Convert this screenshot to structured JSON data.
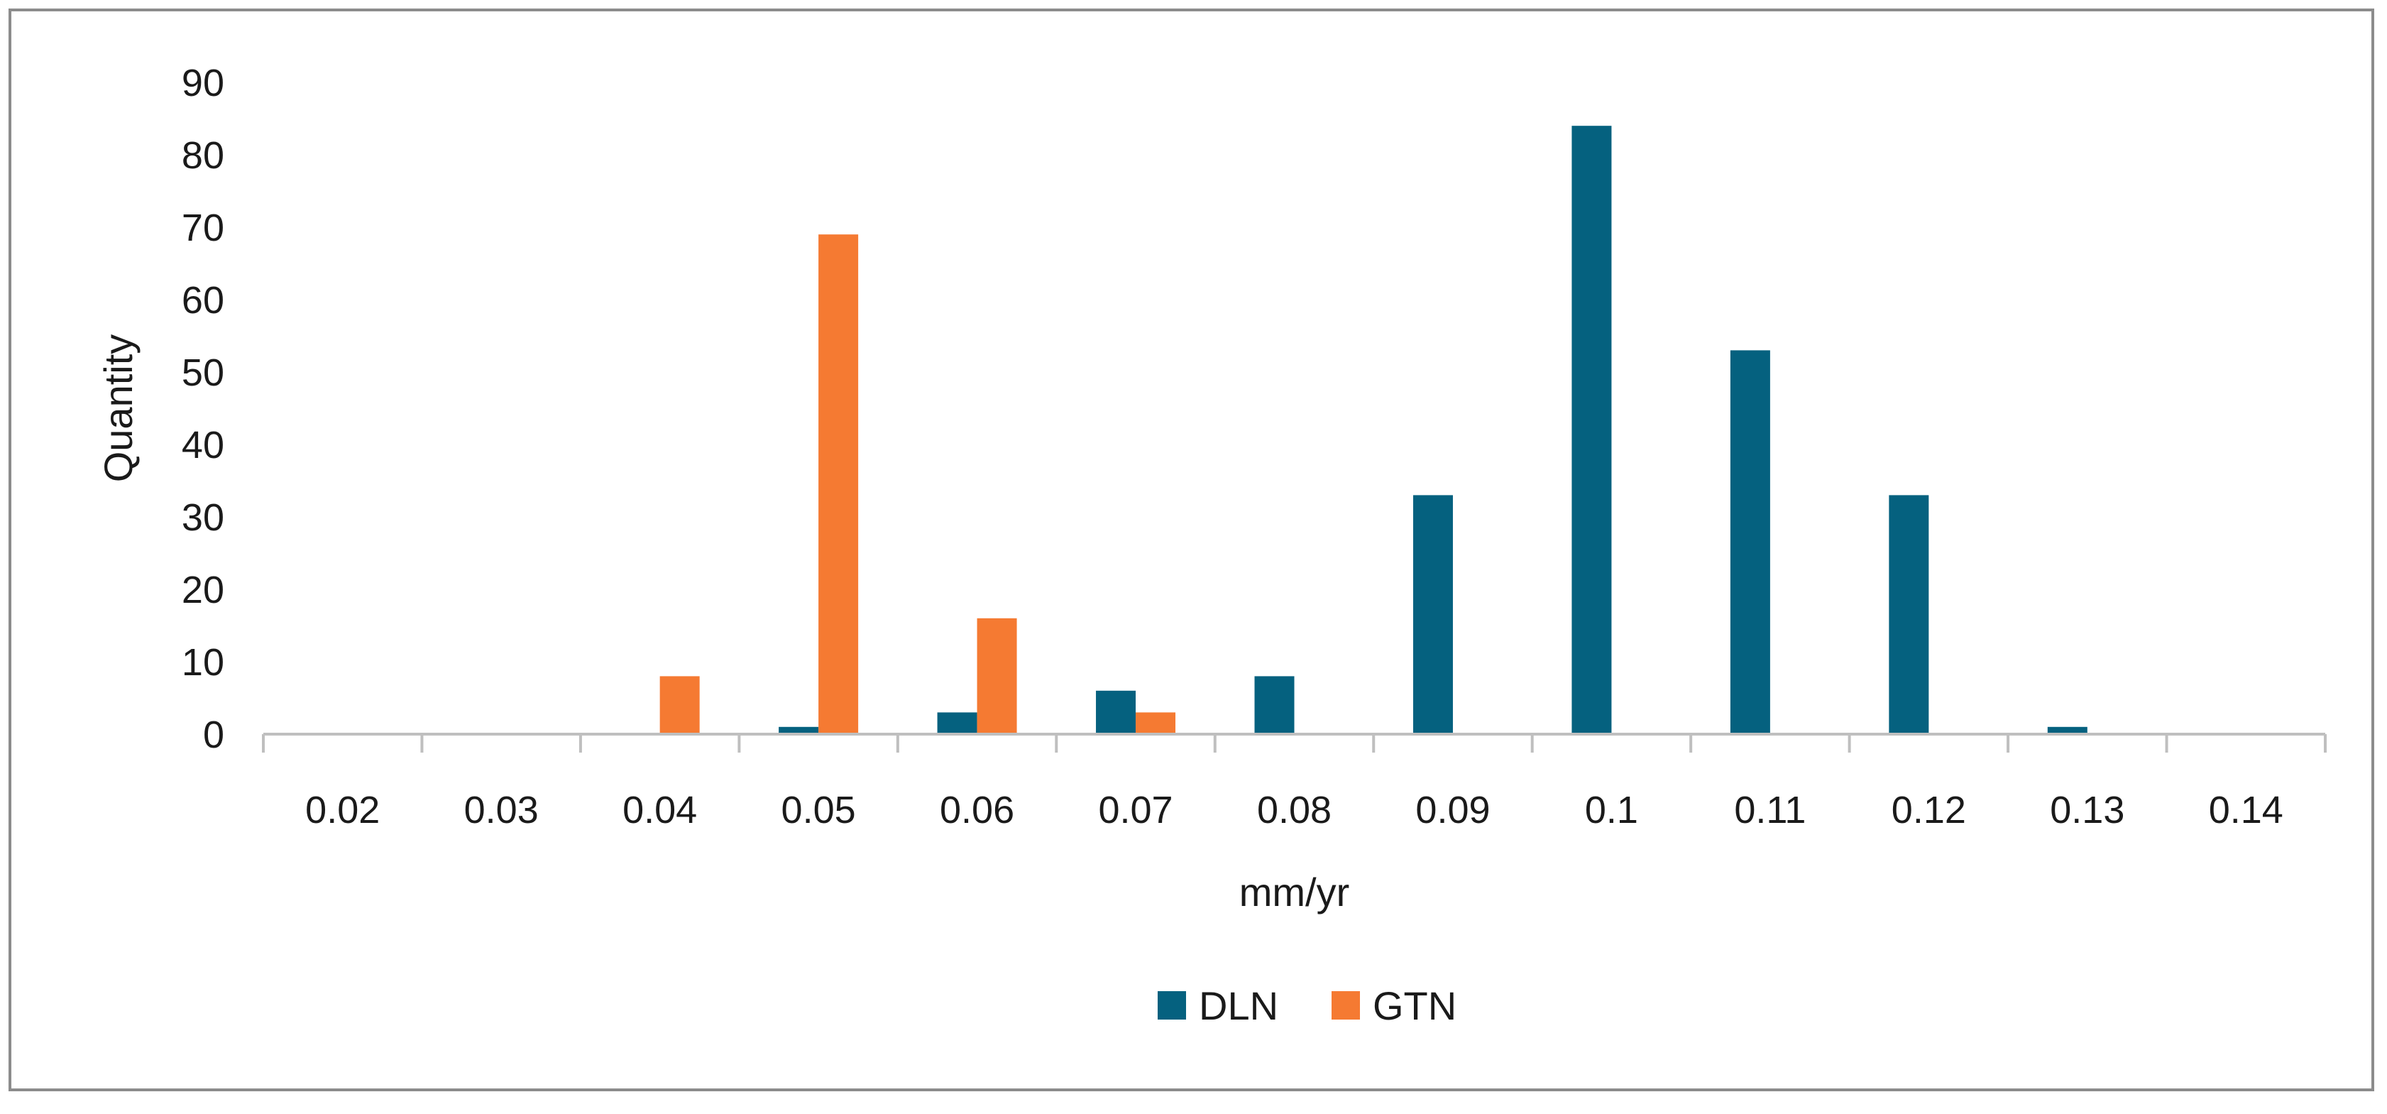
{
  "chart_data": {
    "type": "bar",
    "title": "",
    "xlabel": "mm/yr",
    "ylabel": "Quantity",
    "categories": [
      "0.02",
      "0.03",
      "0.04",
      "0.05",
      "0.06",
      "0.07",
      "0.08",
      "0.09",
      "0.1",
      "0.11",
      "0.12",
      "0.13",
      "0.14"
    ],
    "series": [
      {
        "name": "DLN",
        "color": "#05617f",
        "values": [
          0,
          0,
          0,
          1,
          3,
          6,
          8,
          33,
          84,
          53,
          33,
          1,
          0
        ]
      },
      {
        "name": "GTN",
        "color": "#f57a32",
        "values": [
          0,
          0,
          8,
          69,
          16,
          3,
          0,
          0,
          0,
          0,
          0,
          0,
          0
        ]
      }
    ],
    "ylim": [
      0,
      90
    ],
    "yticks": [
      0,
      10,
      20,
      30,
      40,
      50,
      60,
      70,
      80,
      90
    ],
    "grid": false,
    "legend": "bottom-center"
  }
}
